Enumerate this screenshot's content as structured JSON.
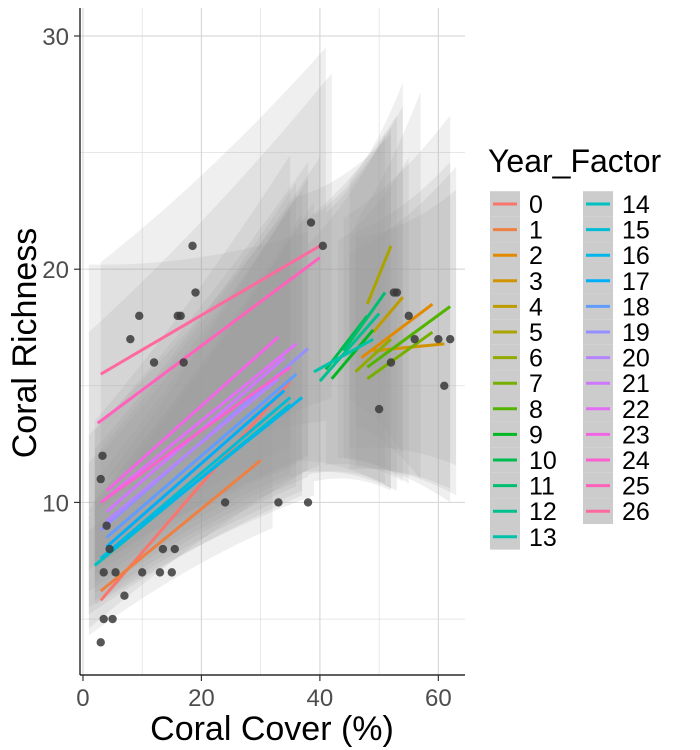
{
  "chart_data": {
    "type": "scatter",
    "xlabel": "Coral Cover (%)",
    "ylabel": "Coral Richness",
    "xlim": [
      -0.5,
      64.5
    ],
    "ylim": [
      2.6,
      31.2
    ],
    "x_ticks": [
      0,
      20,
      40,
      60
    ],
    "y_ticks": [
      10,
      20,
      30
    ],
    "grid": true,
    "legend": {
      "title": "Year_Factor",
      "placement": "right",
      "columns": 2
    },
    "colors": {
      "point": "#3a3a3a",
      "ribbon": "#9a9a9a",
      "grid": "#d9d9d9",
      "axis": "#000000",
      "tick_label": "#4d4d4d"
    },
    "points": [
      [
        3,
        4
      ],
      [
        3.5,
        5
      ],
      [
        5,
        5
      ],
      [
        3.5,
        7
      ],
      [
        3,
        11
      ],
      [
        3.3,
        12
      ],
      [
        4,
        9
      ],
      [
        4.5,
        8
      ],
      [
        5.5,
        7
      ],
      [
        7,
        6
      ],
      [
        8,
        17
      ],
      [
        9.5,
        18
      ],
      [
        10,
        7
      ],
      [
        12,
        16
      ],
      [
        13,
        7
      ],
      [
        13.5,
        8
      ],
      [
        15,
        7
      ],
      [
        15.5,
        8
      ],
      [
        16,
        18
      ],
      [
        16.5,
        18
      ],
      [
        17,
        16
      ],
      [
        18.5,
        21
      ],
      [
        19,
        19
      ],
      [
        24,
        10
      ],
      [
        33,
        10
      ],
      [
        38,
        10
      ],
      [
        38.5,
        22
      ],
      [
        40.5,
        21
      ],
      [
        50,
        14
      ],
      [
        52,
        16
      ],
      [
        52.5,
        19
      ],
      [
        53,
        19
      ],
      [
        55,
        18
      ],
      [
        56,
        17
      ],
      [
        60,
        17
      ],
      [
        61,
        15
      ],
      [
        62,
        17
      ]
    ],
    "series": [
      {
        "name": "0",
        "color": "#F8766D",
        "x": [
          3,
          35
        ],
        "y": [
          5.8,
          15.2
        ],
        "band_x": [
          1,
          38
        ],
        "band_lo": [
          4.6,
          11.4
        ],
        "band_hi": [
          20.2,
          21.6
        ]
      },
      {
        "name": "1",
        "color": "#EE8044",
        "x": [
          3,
          30
        ],
        "y": [
          6.2,
          11.8
        ],
        "band_x": [
          1,
          32
        ],
        "band_lo": [
          4.3,
          8.9
        ],
        "band_hi": [
          8.8,
          15.8
        ]
      },
      {
        "name": "2",
        "color": "#E18A00",
        "x": [
          47,
          59
        ],
        "y": [
          16.2,
          18.5
        ],
        "band_x": [
          44,
          62
        ],
        "band_lo": [
          11.9,
          10.0
        ],
        "band_hi": [
          22.2,
          26.6
        ]
      },
      {
        "name": "3",
        "color": "#D09400",
        "x": [
          49,
          61
        ],
        "y": [
          16.5,
          16.8
        ],
        "band_x": [
          46,
          63
        ],
        "band_lo": [
          11.5,
          10.3
        ],
        "band_hi": [
          21.4,
          23.4
        ]
      },
      {
        "name": "4",
        "color": "#BE9C00",
        "x": [
          49,
          54
        ],
        "y": [
          17.3,
          18.8
        ],
        "band_x": [
          46,
          57
        ],
        "band_lo": [
          13.3,
          11.0
        ],
        "band_hi": [
          22.0,
          27.6
        ]
      },
      {
        "name": "5",
        "color": "#AAA300",
        "x": [
          48,
          52
        ],
        "y": [
          18.5,
          21.0
        ],
        "band_x": [
          45,
          54
        ],
        "band_lo": [
          14.4,
          12.1
        ],
        "band_hi": [
          23.8,
          28.0
        ]
      },
      {
        "name": "6",
        "color": "#92AA00",
        "x": [
          46,
          52
        ],
        "y": [
          15.6,
          17.0
        ],
        "band_x": [
          43,
          55
        ],
        "band_lo": [
          11.9,
          10.8
        ],
        "band_hi": [
          21.2,
          24.8
        ]
      },
      {
        "name": "7",
        "color": "#77AF00",
        "x": [
          48,
          59
        ],
        "y": [
          15.3,
          17.3
        ],
        "band_x": [
          45,
          62
        ],
        "band_lo": [
          11.4,
          10.6
        ],
        "band_hi": [
          21.5,
          24.6
        ]
      },
      {
        "name": "8",
        "color": "#53B400",
        "x": [
          48,
          62
        ],
        "y": [
          15.8,
          18.4
        ],
        "band_x": [
          45,
          63
        ],
        "band_lo": [
          12.3,
          11.6
        ],
        "band_hi": [
          20.7,
          24.4
        ]
      },
      {
        "name": "9",
        "color": "#00B81F",
        "x": [
          42,
          49
        ],
        "y": [
          15.3,
          17.4
        ],
        "band_x": [
          39,
          52
        ],
        "band_lo": [
          10.9,
          10.5
        ],
        "band_hi": [
          22.3,
          26.1
        ]
      },
      {
        "name": "10",
        "color": "#00BB4E",
        "x": [
          41,
          48
        ],
        "y": [
          15.7,
          18.0
        ],
        "band_x": [
          38,
          51
        ],
        "band_lo": [
          11.2,
          10.8
        ],
        "band_hi": [
          21.1,
          25.8
        ]
      },
      {
        "name": "11",
        "color": "#00BE70",
        "x": [
          44,
          51
        ],
        "y": [
          16.5,
          19.0
        ],
        "band_x": [
          41,
          54
        ],
        "band_lo": [
          11.6,
          10.9
        ],
        "band_hi": [
          22.4,
          27.0
        ]
      },
      {
        "name": "12",
        "color": "#00C08E",
        "x": [
          40,
          50
        ],
        "y": [
          15.2,
          18.1
        ],
        "band_x": [
          37,
          53
        ],
        "band_lo": [
          11.3,
          10.5
        ],
        "band_hi": [
          22.0,
          26.6
        ]
      },
      {
        "name": "13",
        "color": "#00C1A9",
        "x": [
          39,
          49
        ],
        "y": [
          15.6,
          17.0
        ],
        "band_x": [
          36,
          52
        ],
        "band_lo": [
          11.8,
          10.6
        ],
        "band_hi": [
          23.1,
          25.8
        ]
      },
      {
        "name": "14",
        "color": "#00C0C1",
        "x": [
          2,
          35
        ],
        "y": [
          7.3,
          14.2
        ],
        "band_x": [
          1,
          37
        ],
        "band_lo": [
          5.2,
          10.3
        ],
        "band_hi": [
          9.4,
          22.1
        ]
      },
      {
        "name": "15",
        "color": "#00BDD6",
        "x": [
          3,
          35
        ],
        "y": [
          7.6,
          14.5
        ],
        "band_x": [
          1,
          37
        ],
        "band_lo": [
          5.5,
          10.5
        ],
        "band_hi": [
          9.7,
          22.4
        ]
      },
      {
        "name": "16",
        "color": "#00B6EA",
        "x": [
          4,
          37
        ],
        "y": [
          7.8,
          14.5
        ],
        "band_x": [
          2,
          39
        ],
        "band_lo": [
          5.6,
          10.3
        ],
        "band_hi": [
          10.1,
          22.9
        ]
      },
      {
        "name": "17",
        "color": "#00AEFA",
        "x": [
          4,
          34
        ],
        "y": [
          8.1,
          14.8
        ],
        "band_x": [
          2,
          36
        ],
        "band_lo": [
          5.8,
          10.7
        ],
        "band_hi": [
          10.4,
          23.2
        ]
      },
      {
        "name": "18",
        "color": "#619CFF",
        "x": [
          4,
          36
        ],
        "y": [
          8.5,
          15.5
        ],
        "band_x": [
          2,
          38
        ],
        "band_lo": [
          6.1,
          11.1
        ],
        "band_hi": [
          10.9,
          23.9
        ]
      },
      {
        "name": "19",
        "color": "#9490FF",
        "x": [
          3,
          38
        ],
        "y": [
          8.8,
          16.6
        ],
        "band_x": [
          1,
          40
        ],
        "band_lo": [
          6.2,
          11.6
        ],
        "band_hi": [
          11.7,
          24.8
        ]
      },
      {
        "name": "20",
        "color": "#B584FF",
        "x": [
          4,
          33
        ],
        "y": [
          9.2,
          15.3
        ],
        "band_x": [
          2,
          35
        ],
        "band_lo": [
          6.6,
          11.2
        ],
        "band_hi": [
          11.8,
          22.6
        ]
      },
      {
        "name": "21",
        "color": "#CF78FF",
        "x": [
          4,
          34
        ],
        "y": [
          9.6,
          16.2
        ],
        "band_x": [
          2,
          36
        ],
        "band_lo": [
          6.9,
          11.6
        ],
        "band_hi": [
          12.3,
          23.7
        ]
      },
      {
        "name": "22",
        "color": "#E36EF6",
        "x": [
          4,
          36
        ],
        "y": [
          10.2,
          16.8
        ],
        "band_x": [
          2,
          38
        ],
        "band_lo": [
          7.2,
          12.0
        ],
        "band_hi": [
          13.1,
          24.6
        ]
      },
      {
        "name": "23",
        "color": "#F265E5",
        "x": [
          4,
          33
        ],
        "y": [
          10.5,
          17.1
        ],
        "band_x": [
          2,
          35
        ],
        "band_lo": [
          7.5,
          12.4
        ],
        "band_hi": [
          13.5,
          24.9
        ]
      },
      {
        "name": "24",
        "color": "#FC61D1",
        "x": [
          3,
          35
        ],
        "y": [
          10.0,
          15.8
        ],
        "band_x": [
          1,
          37
        ],
        "band_lo": [
          7.1,
          11.8
        ],
        "band_hi": [
          12.9,
          23.4
        ]
      },
      {
        "name": "25",
        "color": "#FF62BA",
        "x": [
          2.5,
          40
        ],
        "y": [
          13.4,
          20.5
        ],
        "band_x": [
          1,
          42
        ],
        "band_lo": [
          9.5,
          14.5
        ],
        "band_hi": [
          17.3,
          28.4
        ]
      },
      {
        "name": "26",
        "color": "#FE6A9F",
        "x": [
          3,
          40
        ],
        "y": [
          15.5,
          21.0
        ],
        "band_x": [
          3,
          41
        ],
        "band_lo": [
          11.0,
          13.5
        ],
        "band_hi": [
          20.3,
          29.5
        ]
      }
    ]
  }
}
